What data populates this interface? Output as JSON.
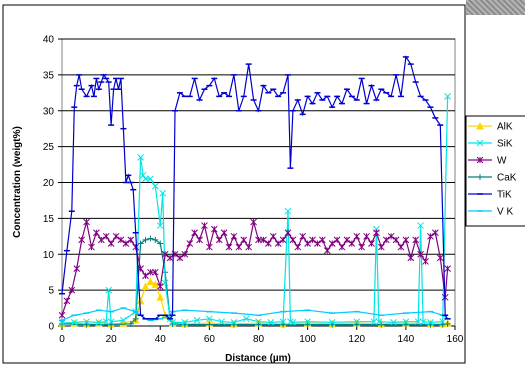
{
  "chart_data": {
    "type": "line",
    "title": "",
    "xlabel": "Distance (µm)",
    "ylabel": "Concentration (weigt%)",
    "xlim": [
      0,
      160
    ],
    "ylim": [
      0,
      40
    ],
    "xticks": [
      "0",
      "20",
      "40",
      "60",
      "80",
      "100",
      "120",
      "140",
      "160"
    ],
    "yticks": [
      "0",
      "5",
      "10",
      "15",
      "20",
      "25",
      "30",
      "35",
      "40"
    ],
    "grid": "horizontal",
    "legend": "right",
    "series": [
      {
        "name": "AlK",
        "color": "#ffd700",
        "marker": "triangle",
        "x": [
          0,
          5,
          10,
          15,
          20,
          25,
          30,
          32,
          34,
          36,
          38,
          40,
          42,
          45,
          50,
          60,
          70,
          80,
          90,
          100,
          110,
          120,
          130,
          140,
          150,
          155,
          157
        ],
        "y": [
          0.3,
          0.4,
          0.3,
          0.4,
          0.3,
          0.4,
          0.8,
          3.5,
          5.5,
          6.2,
          5.8,
          4.0,
          1.5,
          0.4,
          0.3,
          0.4,
          0.3,
          0.4,
          0.3,
          0.4,
          0.3,
          0.4,
          0.3,
          0.4,
          0.3,
          0.3,
          0.4
        ]
      },
      {
        "name": "SiK",
        "color": "#00e5e5",
        "marker": "x",
        "x": [
          0,
          5,
          10,
          15,
          18,
          19,
          20,
          25,
          30,
          32,
          33,
          34,
          36,
          38,
          40,
          41,
          42,
          44,
          45,
          50,
          55,
          60,
          65,
          70,
          75,
          80,
          85,
          90,
          92,
          93,
          94,
          100,
          110,
          120,
          127,
          128,
          129,
          135,
          140,
          145,
          146,
          147,
          150,
          155,
          157
        ],
        "y": [
          0.4,
          0.5,
          0.6,
          0.5,
          0.6,
          5.0,
          0.6,
          0.8,
          2.0,
          23.5,
          21.0,
          20.5,
          20.5,
          19.5,
          14.0,
          18.5,
          6.0,
          1.0,
          0.5,
          0.5,
          0.8,
          1.0,
          0.6,
          0.5,
          1.0,
          0.6,
          0.5,
          0.6,
          16.0,
          0.6,
          0.5,
          0.6,
          0.5,
          0.6,
          0.6,
          13.5,
          0.6,
          0.5,
          0.6,
          0.6,
          14.0,
          0.6,
          0.5,
          0.6,
          32.0
        ]
      },
      {
        "name": "W",
        "color": "#800080",
        "marker": "star",
        "x": [
          0,
          2,
          4,
          6,
          8,
          10,
          12,
          14,
          16,
          18,
          20,
          22,
          24,
          26,
          28,
          30,
          32,
          34,
          36,
          38,
          40,
          42,
          44,
          46,
          48,
          50,
          52,
          54,
          56,
          58,
          60,
          62,
          64,
          66,
          68,
          70,
          72,
          74,
          76,
          78,
          80,
          82,
          84,
          86,
          88,
          90,
          92,
          94,
          96,
          98,
          100,
          102,
          104,
          106,
          108,
          110,
          112,
          114,
          116,
          118,
          120,
          122,
          124,
          126,
          128,
          130,
          132,
          134,
          136,
          138,
          140,
          142,
          144,
          146,
          148,
          150,
          152,
          154,
          156,
          157
        ],
        "y": [
          1.5,
          3.5,
          5.0,
          8.0,
          12.0,
          14.5,
          11.0,
          13.0,
          12.0,
          12.5,
          11.5,
          12.5,
          12.0,
          11.5,
          12.0,
          11.0,
          8.0,
          7.0,
          7.5,
          7.5,
          5.5,
          10.0,
          9.5,
          10.0,
          9.5,
          10.0,
          11.5,
          13.0,
          12.0,
          14.0,
          11.0,
          13.5,
          12.0,
          13.0,
          11.0,
          12.5,
          11.0,
          12.0,
          11.0,
          14.5,
          12.0,
          12.0,
          11.5,
          12.5,
          11.5,
          12.0,
          13.0,
          12.0,
          11.0,
          12.5,
          11.5,
          12.0,
          11.5,
          12.0,
          10.5,
          11.5,
          12.0,
          11.0,
          12.0,
          11.5,
          12.5,
          11.0,
          12.5,
          11.5,
          13.0,
          11.0,
          12.0,
          12.5,
          12.0,
          11.0,
          12.0,
          9.5,
          12.0,
          10.0,
          9.0,
          12.5,
          13.0,
          9.5,
          4.0,
          8.0
        ]
      },
      {
        "name": "CaK",
        "color": "#008080",
        "marker": "plus",
        "x": [
          0,
          10,
          20,
          28,
          30,
          32,
          34,
          36,
          38,
          40,
          42,
          44,
          45,
          50,
          60,
          70,
          80,
          90,
          100,
          110,
          120,
          130,
          140,
          150,
          155,
          157
        ],
        "y": [
          0.3,
          0.2,
          0.2,
          0.3,
          1.0,
          11.5,
          12.0,
          12.2,
          12.0,
          11.5,
          7.5,
          1.0,
          0.3,
          0.2,
          0.2,
          0.2,
          0.2,
          0.2,
          0.2,
          0.2,
          0.2,
          0.2,
          0.2,
          0.2,
          0.2,
          0.3
        ]
      },
      {
        "name": "TiK",
        "color": "#0000cd",
        "marker": "dash",
        "x": [
          0,
          2,
          4,
          5,
          6,
          7,
          8,
          10,
          12,
          13,
          14,
          15,
          16,
          17,
          18,
          19,
          20,
          21,
          22,
          23,
          24,
          25,
          26,
          27,
          28,
          29,
          30,
          32,
          34,
          36,
          38,
          40,
          42,
          44,
          45,
          46,
          48,
          50,
          52,
          54,
          56,
          58,
          60,
          62,
          64,
          66,
          68,
          70,
          72,
          74,
          76,
          78,
          80,
          82,
          84,
          86,
          88,
          90,
          92,
          93,
          94,
          96,
          98,
          100,
          102,
          104,
          106,
          108,
          110,
          112,
          114,
          116,
          118,
          120,
          122,
          124,
          126,
          128,
          130,
          132,
          134,
          136,
          138,
          140,
          142,
          144,
          146,
          148,
          150,
          152,
          154,
          156,
          157
        ],
        "y": [
          4.5,
          10.5,
          16.0,
          30.5,
          33.5,
          35.0,
          33.0,
          32.0,
          33.5,
          32.0,
          34.5,
          33.0,
          34.0,
          35.0,
          34.5,
          34.0,
          28.0,
          33.0,
          34.5,
          33.0,
          34.5,
          27.5,
          20.0,
          21.0,
          20.0,
          19.0,
          13.0,
          1.5,
          1.0,
          1.0,
          1.0,
          1.5,
          1.5,
          1.0,
          1.5,
          30.0,
          32.5,
          32.0,
          32.0,
          34.5,
          31.5,
          33.0,
          33.5,
          34.5,
          32.0,
          32.5,
          32.0,
          35.0,
          30.0,
          32.0,
          36.5,
          31.5,
          30.0,
          33.5,
          32.5,
          33.0,
          32.0,
          32.5,
          35.0,
          22.0,
          30.0,
          31.5,
          29.5,
          32.0,
          31.0,
          32.5,
          31.5,
          32.0,
          30.5,
          32.0,
          31.0,
          33.0,
          32.0,
          31.5,
          34.5,
          31.0,
          33.5,
          31.5,
          33.0,
          32.5,
          32.0,
          35.0,
          32.0,
          37.5,
          36.5,
          34.0,
          32.0,
          31.5,
          30.5,
          29.0,
          28.0,
          1.5,
          1.0
        ]
      },
      {
        "name": "V K",
        "color": "#00ccff",
        "marker": "dash",
        "x": [
          0,
          5,
          10,
          15,
          20,
          25,
          30,
          32,
          34,
          36,
          38,
          40,
          42,
          44,
          45,
          50,
          60,
          70,
          80,
          90,
          100,
          110,
          120,
          130,
          140,
          150,
          155,
          157
        ],
        "y": [
          0.8,
          1.5,
          1.8,
          2.2,
          2.0,
          2.5,
          2.0,
          1.5,
          1.0,
          0.8,
          0.9,
          1.0,
          1.2,
          1.5,
          2.0,
          2.2,
          2.0,
          1.8,
          1.5,
          2.0,
          2.2,
          1.8,
          2.0,
          1.5,
          1.8,
          2.0,
          1.5,
          1.0
        ]
      }
    ]
  }
}
